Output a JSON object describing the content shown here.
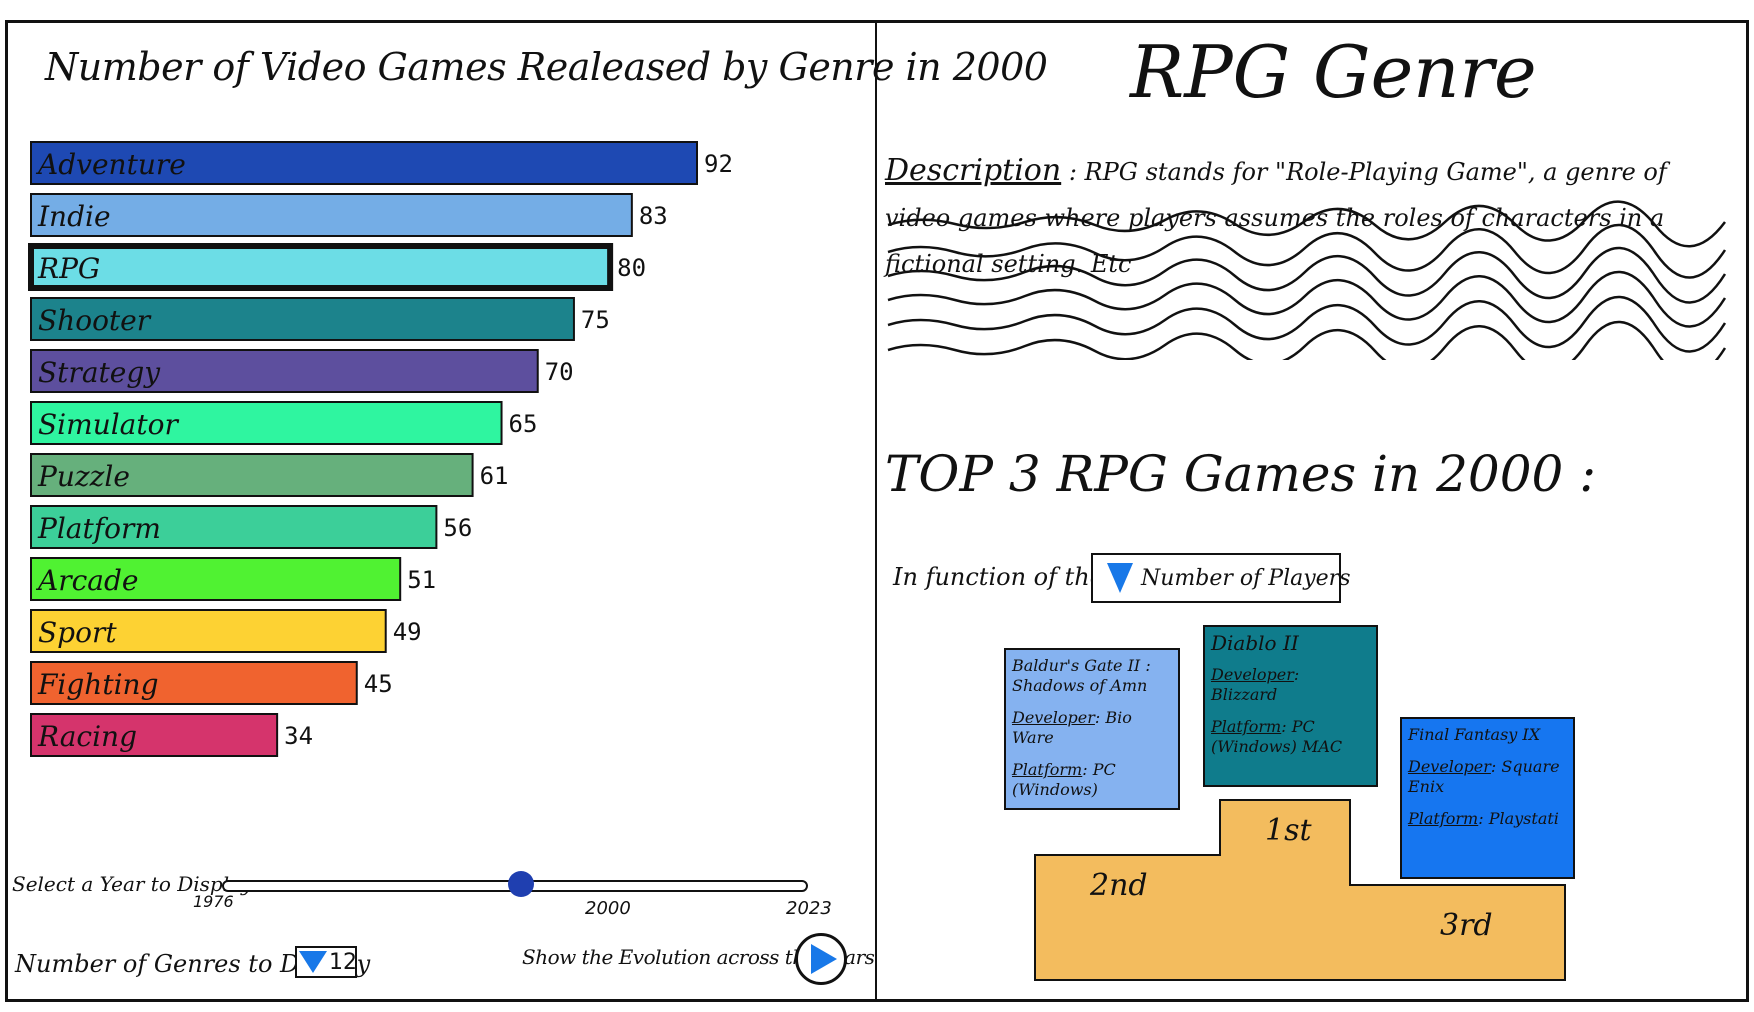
{
  "chart_data": {
    "type": "bar",
    "orientation": "horizontal",
    "title": "Number of Video Games Realeased by Genre in 2000",
    "categories": [
      "Adventure",
      "Indie",
      "RPG",
      "Shooter",
      "Strategy",
      "Simulator",
      "Puzzle",
      "Platform",
      "Arcade",
      "Sport",
      "Fighting",
      "Racing"
    ],
    "values": [
      92,
      83,
      80,
      75,
      70,
      65,
      61,
      56,
      51,
      49,
      45,
      34
    ],
    "colors": [
      "#1e49b3",
      "#74ade6",
      "#6cdde6",
      "#1c838c",
      "#5d4f9e",
      "#2ff5a0",
      "#66b07c",
      "#3ccf99",
      "#50f232",
      "#fdd233",
      "#f0632f",
      "#d5346c"
    ],
    "highlighted": "RPG",
    "xlim": [
      0,
      92
    ],
    "grid": false
  },
  "controls": {
    "year_label": "Select a Year to Display:",
    "year_min": "1976",
    "year_current": "2000",
    "year_max": "2023",
    "year_value": 2000,
    "year_range": [
      1976,
      2023
    ],
    "genres_label": "Number of Genres to Display",
    "genres_value": "12",
    "evolution_label": "Show the Evolution across the Years"
  },
  "detail": {
    "title": "RPG Genre",
    "description_label": "Description",
    "description_text": ": RPG stands for \"Role-Playing Game\", a genre of video games where players assumes the roles of characters in a fictional setting. Etc",
    "top3_title": "TOP 3 RPG Games in 2000 :",
    "function_label": "In function of the :",
    "function_value": "Number of Players",
    "developer_key": "Developer",
    "platform_key": "Platform",
    "games": {
      "second": {
        "name": "Baldur's Gate II : Shadows of Amn",
        "developer": "Bio Ware",
        "platform": "PC (Windows)"
      },
      "first": {
        "name": "Diablo II",
        "developer": "Blizzard",
        "platform": "PC (Windows) MAC"
      },
      "third": {
        "name": "Final Fantasy IX",
        "developer": "Square Enix",
        "platform": "Playstati"
      }
    },
    "podium": {
      "first": "1st",
      "second": "2nd",
      "third": "3rd"
    },
    "podium_color": "#f3bc5e"
  }
}
